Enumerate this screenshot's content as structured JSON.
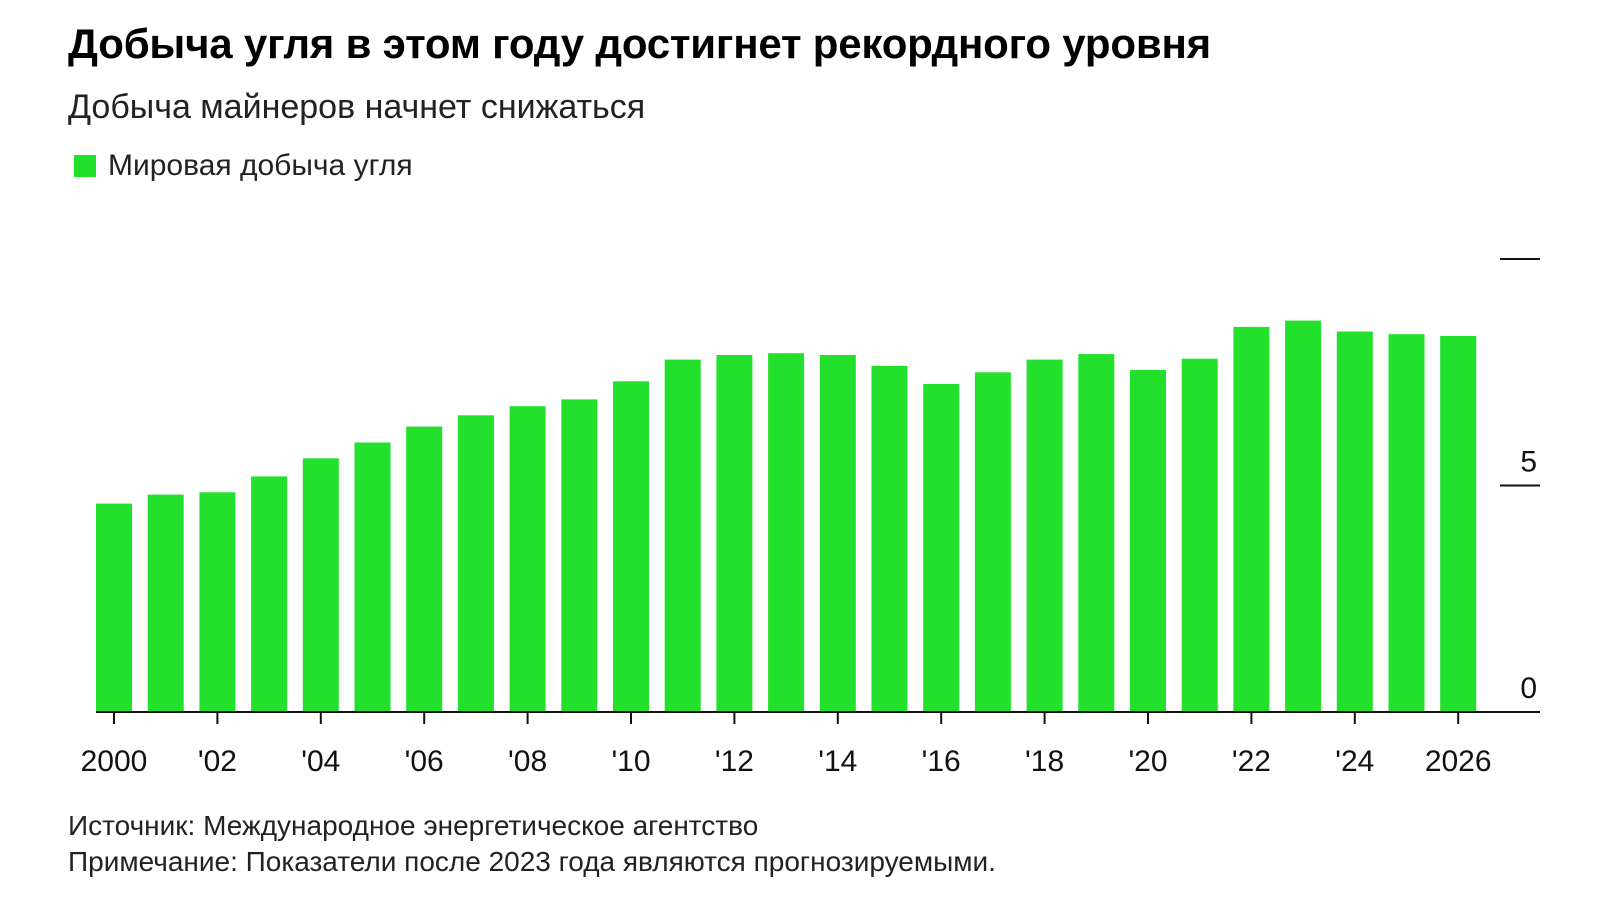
{
  "header": {
    "title": "Добыча угля в этом году достигнет рекордного уровня",
    "subtitle": "Добыча майнеров начнет снижаться"
  },
  "legend": {
    "label": "Мировая добыча угля",
    "color": "#22e02c"
  },
  "footer": {
    "source": "Источник: Международное энергетическое агентство",
    "note": "Примечание: Показатели после 2023 года являются прогнозируемыми."
  },
  "chart_data": {
    "type": "bar",
    "categories": [
      "2000",
      "2001",
      "2002",
      "2003",
      "2004",
      "2005",
      "2006",
      "2007",
      "2008",
      "2009",
      "2010",
      "2011",
      "2012",
      "2013",
      "2014",
      "2015",
      "2016",
      "2017",
      "2018",
      "2019",
      "2020",
      "2021",
      "2022",
      "2023",
      "2024",
      "2025",
      "2026"
    ],
    "series": [
      {
        "name": "Мировая добыча угля",
        "color": "#22e02c",
        "values": [
          4.6,
          4.8,
          4.85,
          5.2,
          5.6,
          5.95,
          6.3,
          6.55,
          6.75,
          6.9,
          7.3,
          7.78,
          7.88,
          7.92,
          7.88,
          7.64,
          7.24,
          7.5,
          7.78,
          7.9,
          7.55,
          7.8,
          8.5,
          8.64,
          8.4,
          8.34,
          8.3
        ]
      }
    ],
    "x_tick_labels": [
      "2000",
      "",
      "'02",
      "",
      "'04",
      "",
      "'06",
      "",
      "'08",
      "",
      "'10",
      "",
      "'12",
      "",
      "'14",
      "",
      "'16",
      "",
      "'18",
      "",
      "'20",
      "",
      "'22",
      "",
      "'24",
      "",
      "2026"
    ],
    "y_ticks": [
      0,
      5,
      10
    ],
    "y_tick_labels": [
      "0",
      "5",
      ""
    ],
    "ylim": [
      0,
      10
    ],
    "y_axis_position": "right",
    "grid": false,
    "legend_position": "top-left"
  }
}
